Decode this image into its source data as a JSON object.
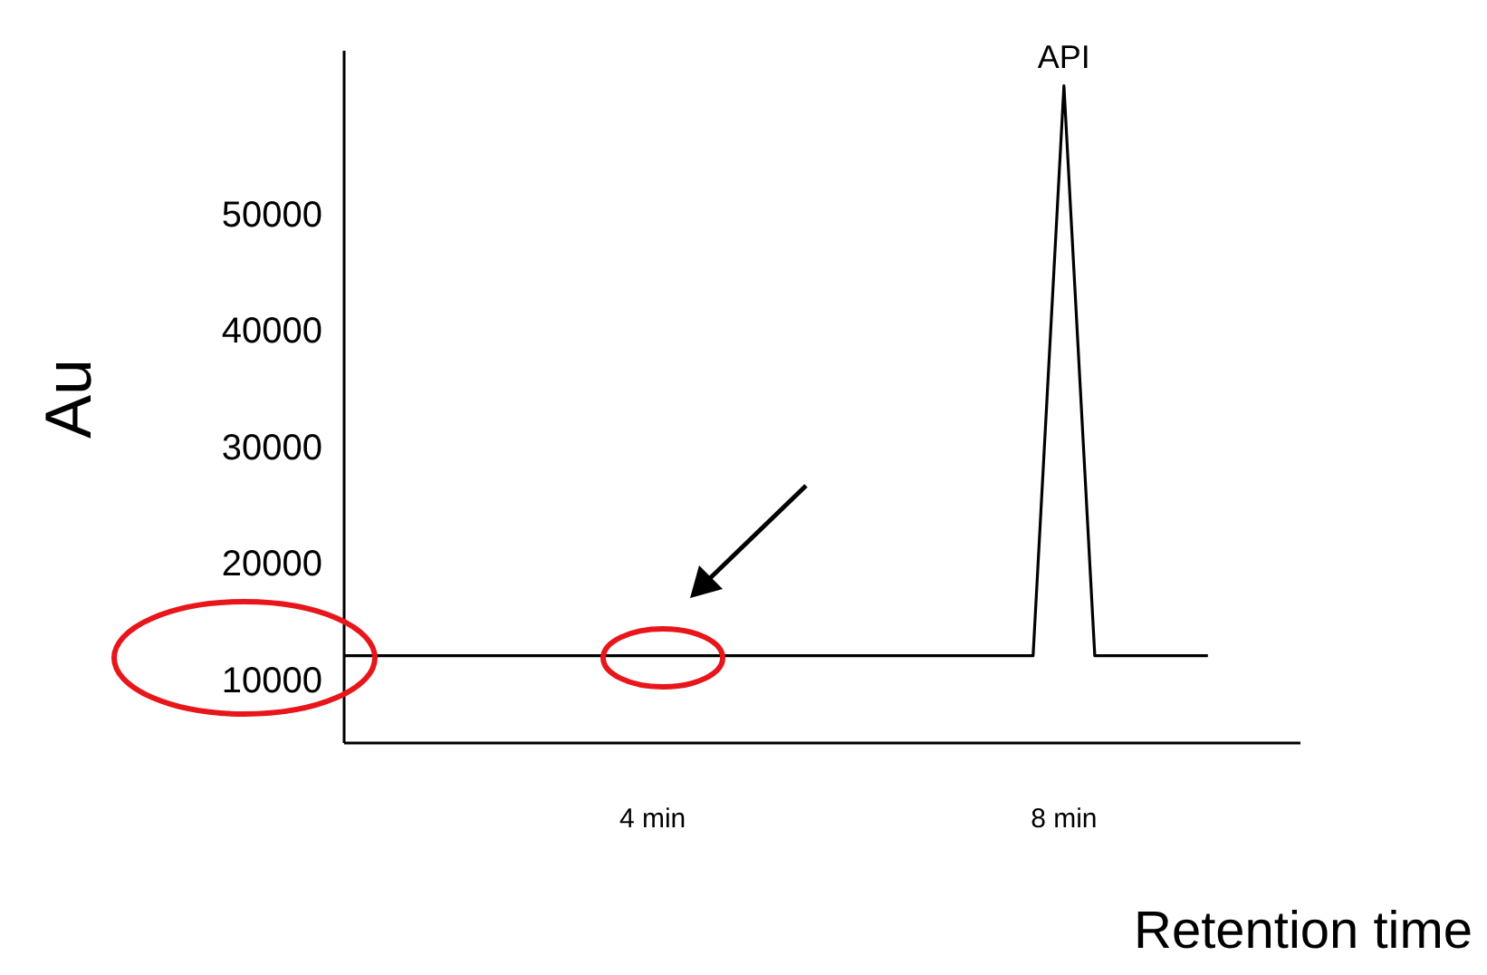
{
  "chart_data": {
    "type": "line",
    "xlabel": "Retention time",
    "ylabel": "Au",
    "annotations": [
      {
        "text": "API",
        "x": 8,
        "y": 61000
      }
    ],
    "x": [
      1,
      7.7,
      8,
      8.3,
      9.4
    ],
    "series": [
      {
        "color": "#000000",
        "values": [
          12000,
          12000,
          61000,
          12000,
          12000
        ]
      }
    ],
    "xlim": [
      1,
      10.3
    ],
    "xticks": [
      {
        "value": 4,
        "label": "4 min"
      },
      {
        "value": 8,
        "label": "8 min"
      }
    ],
    "ylim": [
      4500,
      64000
    ],
    "yticks": [
      10000,
      20000,
      30000,
      40000,
      50000
    ],
    "grid": false,
    "legend": false,
    "marker": "none",
    "line_style": "solid"
  }
}
